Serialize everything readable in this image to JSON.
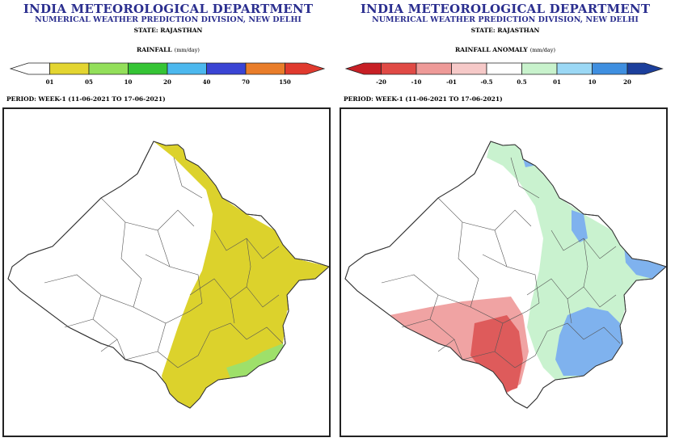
{
  "left": {
    "header": {
      "org": "INDIA METEOROLOGICAL DEPARTMENT",
      "division": "NUMERICAL WEATHER PREDICTION DIVISION, NEW DELHI",
      "state": "STATE: RAJASTHAN"
    },
    "legend": {
      "title": "RAINFALL",
      "unit": "(mm/day)",
      "colors": [
        "#ffffff",
        "#e3d531",
        "#93df5a",
        "#35c435",
        "#4cb8ee",
        "#3a44d4",
        "#e97d2a",
        "#e03a2e"
      ],
      "ticks": [
        "01",
        "05",
        "10",
        "20",
        "40",
        "70",
        "150"
      ]
    },
    "period": "PERIOD: WEEK-1 (11-06-2021 TO 17-06-2021)",
    "map": {
      "fill_colors": {
        "rain_yellow": "#dcd22c",
        "rain_green": "#9ee06a"
      }
    }
  },
  "right": {
    "header": {
      "org": "INDIA METEOROLOGICAL DEPARTMENT",
      "division": "NUMERICAL WEATHER PREDICTION DIVISION, NEW DELHI",
      "state": "STATE: RAJASTHAN"
    },
    "legend": {
      "title": "RAINFALL ANOMALY",
      "unit": "(mm/day)",
      "colors": [
        "#c71f25",
        "#e04a45",
        "#ee9a98",
        "#f6c9c8",
        "#ffffff",
        "#c8f2cc",
        "#9bd8f5",
        "#3f8fe0",
        "#1c3f9c"
      ],
      "ticks": [
        "-20",
        "-10",
        "-01",
        "-0.5",
        "0.5",
        "01",
        "10",
        "20"
      ]
    },
    "period": "PERIOD: WEEK-1 (11-06-2021 TO 17-06-2021)",
    "map": {
      "fill_colors": {
        "pink": "#f0a3a3",
        "red": "#de5b5b",
        "green": "#c9f2cf",
        "blue": "#7fb2ee"
      }
    }
  }
}
